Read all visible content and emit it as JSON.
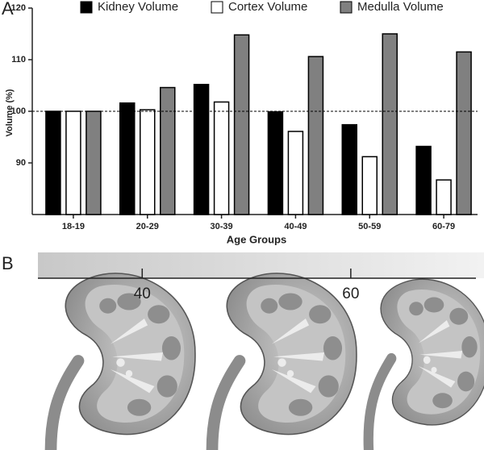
{
  "chart_data": {
    "type": "bar",
    "panel_label": "A",
    "categories": [
      "18-19",
      "20-29",
      "30-39",
      "40-49",
      "50-59",
      "60-79"
    ],
    "series": [
      {
        "name": "Kidney Volume",
        "color": "#000000",
        "values": [
          100,
          101.6,
          105.2,
          99.9,
          97.4,
          93.2
        ]
      },
      {
        "name": "Cortex Volume",
        "color": "#ffffff",
        "values": [
          100,
          100.3,
          101.8,
          96.1,
          91.2,
          86.7
        ]
      },
      {
        "name": "Medulla Volume",
        "color": "#808080",
        "values": [
          100,
          104.6,
          114.8,
          110.6,
          115,
          111.5
        ]
      }
    ],
    "ylim": [
      80,
      120
    ],
    "yticks": [
      90,
      100,
      110,
      120
    ],
    "y_label": "Volume (%)",
    "x_label": "Age Groups",
    "reference_line": 100
  },
  "panel_b": {
    "label": "B",
    "age_ticks": [
      {
        "value": 40,
        "label": "40"
      },
      {
        "value": 60,
        "label": "60"
      }
    ],
    "age_range": [
      30,
      72
    ]
  }
}
